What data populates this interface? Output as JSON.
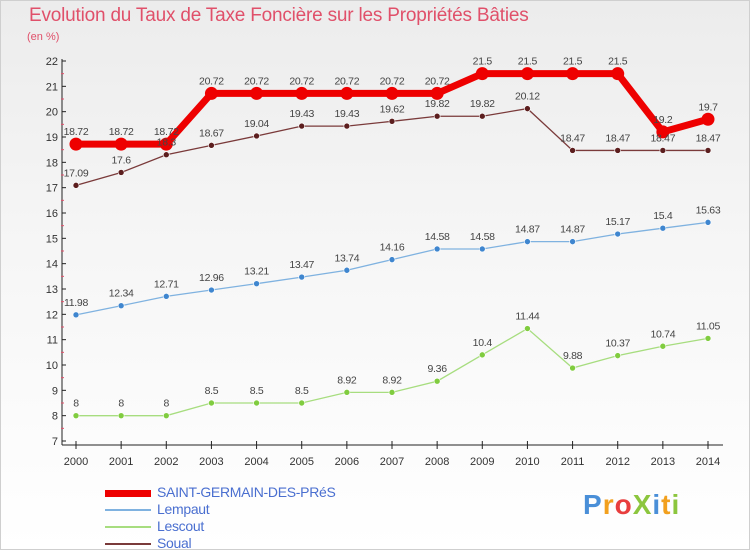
{
  "title": "Evolution du Taux de Taxe Foncière sur les Propriétés Bâties",
  "subtitle": "(en %)",
  "brand": {
    "text": "ProXiti",
    "letters": [
      {
        "ch": "P",
        "color": "#4a8fd8"
      },
      {
        "ch": "r",
        "color": "#f2a01e"
      },
      {
        "ch": "o",
        "color": "#e83e3e"
      },
      {
        "ch": "X",
        "color": "#8cc63e"
      },
      {
        "ch": "i",
        "color": "#4a8fd8"
      },
      {
        "ch": "t",
        "color": "#f2a01e"
      },
      {
        "ch": "i",
        "color": "#8cc63e"
      }
    ]
  },
  "chart_data": {
    "type": "line",
    "title": "Evolution du Taux de Taxe Foncière sur les Propriétés Bâties",
    "subtitle": "(en %)",
    "x": [
      2000,
      2001,
      2002,
      2003,
      2004,
      2005,
      2006,
      2007,
      2008,
      2009,
      2010,
      2011,
      2012,
      2013,
      2014
    ],
    "ylim": [
      7,
      22
    ],
    "yticks": [
      7,
      8,
      9,
      10,
      11,
      12,
      13,
      14,
      15,
      16,
      17,
      18,
      19,
      20,
      21,
      22
    ],
    "grid": false,
    "legend_position": "bottom-left",
    "series": [
      {
        "name": "SAINT-GERMAIN-DES-PRéS",
        "color": "#ee0000",
        "thick": true,
        "values": [
          18.72,
          18.72,
          18.72,
          20.72,
          20.72,
          20.72,
          20.72,
          20.72,
          20.72,
          21.5,
          21.5,
          21.5,
          21.5,
          19.2,
          19.7
        ],
        "labels": [
          "18.72",
          "18.72",
          "18.72",
          "20.72",
          "20.72",
          "20.72",
          "20.72",
          "20.72",
          "20.72",
          "21.5",
          "21.5",
          "21.5",
          "21.5",
          "19.2",
          "19.7"
        ]
      },
      {
        "name": "Lempaut",
        "color": "#7fb2e0",
        "marker": "#3f86cf",
        "values": [
          11.98,
          12.34,
          12.71,
          12.96,
          13.21,
          13.47,
          13.74,
          14.16,
          14.58,
          14.58,
          14.87,
          14.87,
          15.17,
          15.4,
          15.63
        ],
        "labels": [
          "11.98",
          "12.34",
          "12.71",
          "12.96",
          "13.21",
          "13.47",
          "13.74",
          "14.16",
          "14.58",
          "14.58",
          "14.87",
          "14.87",
          "15.17",
          "15.4",
          "15.63"
        ]
      },
      {
        "name": "Lescout",
        "color": "#a7dd7f",
        "marker": "#80cc3f",
        "values": [
          8,
          8,
          8,
          8.5,
          8.5,
          8.5,
          8.92,
          8.92,
          9.36,
          10.4,
          11.44,
          9.88,
          10.37,
          10.74,
          11.05
        ],
        "labels": [
          "8",
          "8",
          "8",
          "8.5",
          "8.5",
          "8.5",
          "8.92",
          "8.92",
          "9.36",
          "10.4",
          "11.44",
          "9.88",
          "10.37",
          "10.74",
          "11.05"
        ]
      },
      {
        "name": "Soual",
        "color": "#7a3a3a",
        "marker": "#5c1e1e",
        "values": [
          17.09,
          17.6,
          18.3,
          18.67,
          19.04,
          19.43,
          19.43,
          19.62,
          19.82,
          19.82,
          20.12,
          18.47,
          18.47,
          18.47,
          18.47
        ],
        "labels": [
          "17.09",
          "17.6",
          "18.3",
          "18.67",
          "19.04",
          "19.43",
          "19.43",
          "19.62",
          "19.82",
          "19.82",
          "20.12",
          "18.47",
          "18.47",
          "18.47",
          "18.47"
        ]
      }
    ]
  }
}
